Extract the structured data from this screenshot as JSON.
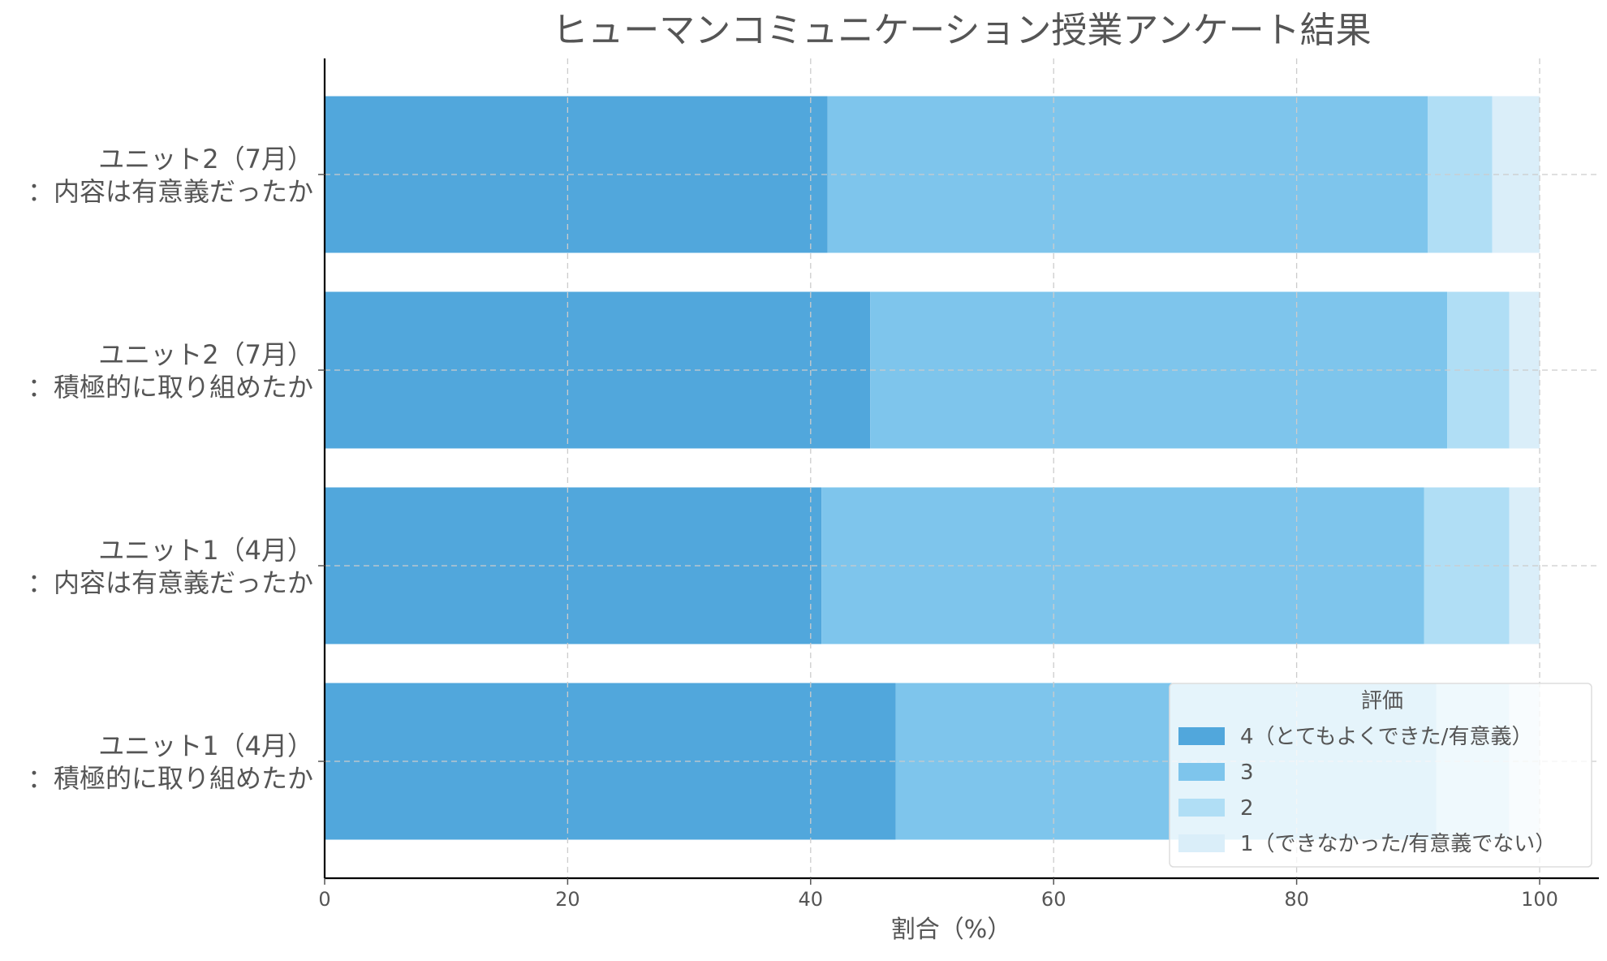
{
  "chart_data": {
    "type": "bar",
    "orientation": "horizontal",
    "stacked": true,
    "title": "ヒューマンコミュニケーション授業アンケート結果",
    "xlabel": "割合（%）",
    "ylabel": "",
    "xlim": [
      0,
      105
    ],
    "xticks": [
      "0",
      "20",
      "40",
      "60",
      "80",
      "100"
    ],
    "grid": true,
    "legend_placement": "lower-right",
    "legend_title": "評価",
    "categories": [
      "ユニット2（7月）\n：内容は有意義だったか",
      "ユニット2（7月）\n：積極的に取り組めたか",
      "ユニット1（4月）\n：内容は有意義だったか",
      "ユニット1（4月）\n：積極的に取り組めたか"
    ],
    "series": [
      {
        "name": "4（とてもよくできた/有意義）",
        "color": "#51a7dc",
        "values": [
          41.4,
          44.9,
          40.9,
          47.0
        ]
      },
      {
        "name": "3",
        "color": "#7ec5ec",
        "values": [
          49.4,
          47.5,
          49.6,
          44.5
        ]
      },
      {
        "name": "2",
        "color": "#b0def5",
        "values": [
          5.3,
          5.1,
          7.0,
          6.0
        ]
      },
      {
        "name": "1（できなかった/有意義でない）",
        "color": "#daeef9",
        "values": [
          3.9,
          2.5,
          2.5,
          2.5
        ]
      }
    ]
  }
}
